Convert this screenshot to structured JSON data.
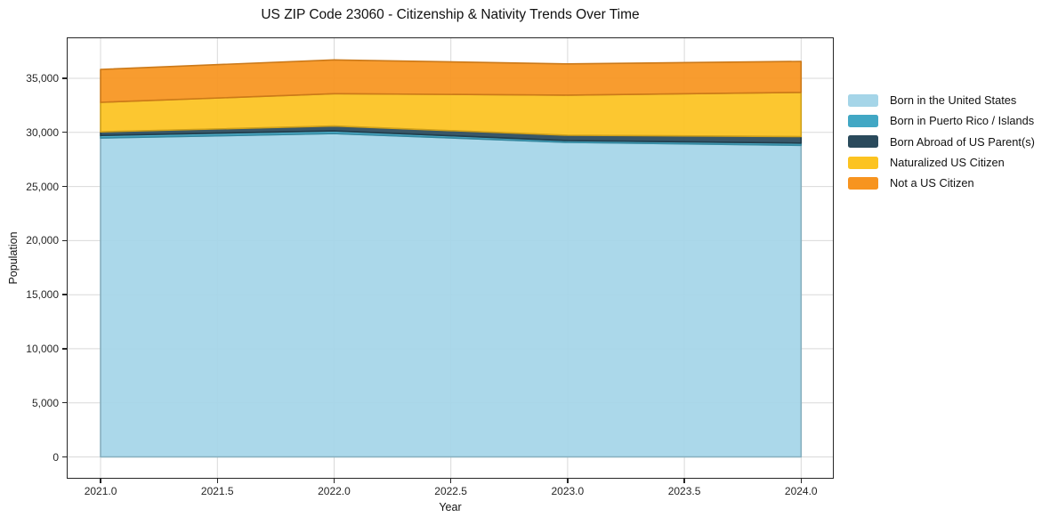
{
  "title": "US ZIP Code 23060 - Citizenship & Nativity Trends Over Time",
  "chart_data": {
    "type": "area",
    "stacked": true,
    "title": "US ZIP Code 23060 - Citizenship & Nativity Trends Over Time",
    "xlabel": "Year",
    "ylabel": "Population",
    "x": [
      2021,
      2022,
      2023,
      2024
    ],
    "series": [
      {
        "name": "Born in the United States",
        "color": "#a5d5e8",
        "values": [
          29480,
          29890,
          29080,
          28810
        ]
      },
      {
        "name": "Born in Puerto Rico / Islands",
        "color": "#41a7c4",
        "values": [
          240,
          250,
          160,
          200
        ]
      },
      {
        "name": "Born Abroad of US Parent(s)",
        "color": "#2a4a5c",
        "values": [
          330,
          450,
          500,
          600
        ]
      },
      {
        "name": "Naturalized US Citizen",
        "color": "#fcc320",
        "values": [
          2730,
          2990,
          3710,
          4090
        ]
      },
      {
        "name": "Not a US Citizen",
        "color": "#f7941f",
        "values": [
          3040,
          3120,
          2880,
          2860
        ]
      }
    ],
    "stacked_totals": [
      35820,
      36700,
      36330,
      36560
    ],
    "x_ticks": [
      2021.0,
      2021.5,
      2022.0,
      2022.5,
      2023.0,
      2023.5,
      2024.0
    ],
    "x_tick_labels": [
      "2021.0",
      "2021.5",
      "2022.0",
      "2022.5",
      "2023.0",
      "2023.5",
      "2024.0"
    ],
    "y_ticks": [
      0,
      5000,
      10000,
      15000,
      20000,
      25000,
      30000,
      35000
    ],
    "y_tick_labels": [
      "0",
      "5,000",
      "10,000",
      "15,000",
      "20,000",
      "25,000",
      "30,000",
      "35,000"
    ],
    "xlim": [
      2020.855,
      2024.14
    ],
    "ylim": [
      -2015,
      38785
    ],
    "grid": true,
    "grid_color": "#d9d9d9",
    "legend_position": "right",
    "spine_color": "#262626",
    "background_color": "#ffffff"
  }
}
